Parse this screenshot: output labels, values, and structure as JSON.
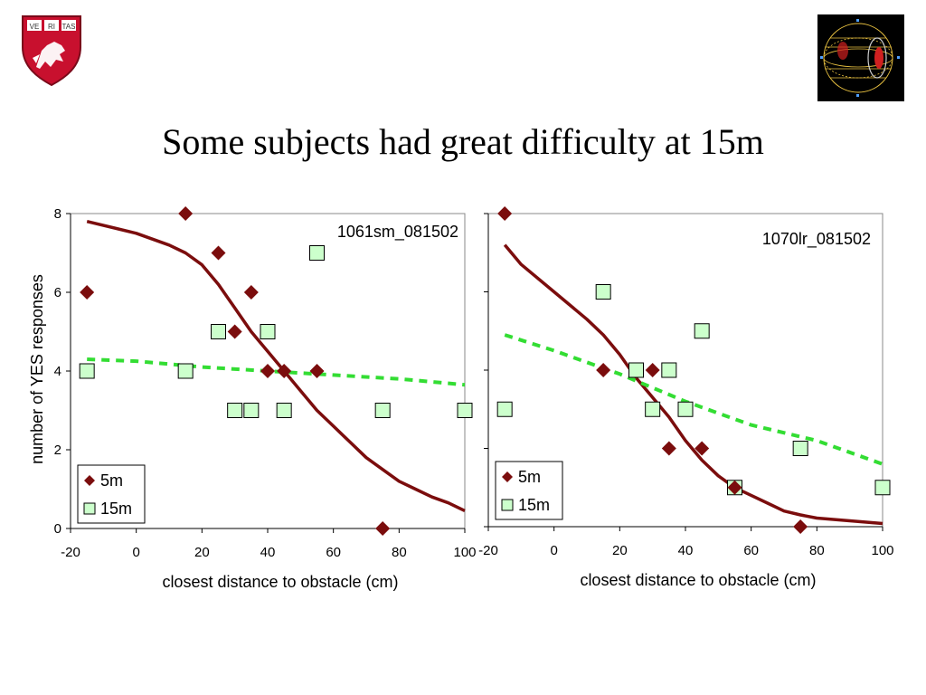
{
  "slide": {
    "title": "Some subjects had great difficulty at 15m"
  },
  "logos": {
    "left": {
      "icon": "harvard-shield-icon",
      "text": "VE RI TAS"
    },
    "right": {
      "icon": "wireframe-sphere-icon"
    }
  },
  "colors": {
    "five_m": "#7b0d0d",
    "fifteen_m_fill": "#ccffcc",
    "fifteen_m_line": "#33dd33"
  },
  "chart_data": [
    {
      "type": "scatter",
      "annotation": "1061sm_081502",
      "xlabel": "closest distance to obstacle (cm)",
      "ylabel": "number of YES responses",
      "xlim": [
        -20,
        100
      ],
      "ylim": [
        0,
        8
      ],
      "xticks": [
        "-20",
        "0",
        "20",
        "40",
        "60",
        "80",
        "100"
      ],
      "yticks": [
        "0",
        "2",
        "4",
        "6",
        "8"
      ],
      "legend_position": "bottom-left",
      "series": [
        {
          "name": "5m",
          "marker": "diamond",
          "points": [
            [
              -15,
              6
            ],
            [
              15,
              8
            ],
            [
              25,
              7
            ],
            [
              30,
              5
            ],
            [
              35,
              6
            ],
            [
              40,
              4
            ],
            [
              45,
              4
            ],
            [
              55,
              4
            ],
            [
              75,
              0
            ]
          ],
          "fit": [
            [
              -15,
              7.8
            ],
            [
              0,
              7.5
            ],
            [
              10,
              7.2
            ],
            [
              15,
              7.0
            ],
            [
              20,
              6.7
            ],
            [
              25,
              6.2
            ],
            [
              30,
              5.6
            ],
            [
              35,
              5.0
            ],
            [
              40,
              4.5
            ],
            [
              45,
              4.0
            ],
            [
              50,
              3.5
            ],
            [
              55,
              3.0
            ],
            [
              60,
              2.6
            ],
            [
              65,
              2.2
            ],
            [
              70,
              1.8
            ],
            [
              75,
              1.5
            ],
            [
              80,
              1.2
            ],
            [
              85,
              1.0
            ],
            [
              90,
              0.8
            ],
            [
              95,
              0.65
            ],
            [
              100,
              0.45
            ]
          ]
        },
        {
          "name": "15m",
          "marker": "square",
          "points": [
            [
              -15,
              4
            ],
            [
              15,
              4
            ],
            [
              25,
              5
            ],
            [
              30,
              3
            ],
            [
              35,
              3
            ],
            [
              40,
              5
            ],
            [
              45,
              3
            ],
            [
              55,
              7
            ],
            [
              75,
              3
            ],
            [
              100,
              3
            ]
          ],
          "fit": [
            [
              -15,
              4.3
            ],
            [
              0,
              4.25
            ],
            [
              20,
              4.1
            ],
            [
              40,
              4.0
            ],
            [
              60,
              3.9
            ],
            [
              80,
              3.8
            ],
            [
              100,
              3.65
            ]
          ]
        }
      ]
    },
    {
      "type": "scatter",
      "annotation": "1070lr_081502",
      "xlabel": "closest distance to obstacle (cm)",
      "ylabel": "",
      "xlim": [
        -20,
        100
      ],
      "ylim": [
        0,
        8
      ],
      "xticks": [
        "-20",
        "0",
        "20",
        "40",
        "60",
        "80",
        "100"
      ],
      "yticks": [],
      "legend_position": "bottom-left",
      "series": [
        {
          "name": "5m",
          "marker": "diamond",
          "points": [
            [
              -15,
              8
            ],
            [
              15,
              4
            ],
            [
              30,
              4
            ],
            [
              35,
              2
            ],
            [
              45,
              2
            ],
            [
              55,
              1
            ],
            [
              75,
              0
            ]
          ],
          "fit": [
            [
              -15,
              7.2
            ],
            [
              -10,
              6.7
            ],
            [
              0,
              6.0
            ],
            [
              10,
              5.3
            ],
            [
              15,
              4.9
            ],
            [
              20,
              4.4
            ],
            [
              25,
              3.8
            ],
            [
              30,
              3.3
            ],
            [
              35,
              2.8
            ],
            [
              40,
              2.2
            ],
            [
              45,
              1.7
            ],
            [
              50,
              1.3
            ],
            [
              55,
              1.0
            ],
            [
              60,
              0.8
            ],
            [
              65,
              0.6
            ],
            [
              70,
              0.4
            ],
            [
              75,
              0.3
            ],
            [
              80,
              0.22
            ],
            [
              90,
              0.15
            ],
            [
              100,
              0.08
            ]
          ]
        },
        {
          "name": "15m",
          "marker": "square",
          "points": [
            [
              -15,
              3
            ],
            [
              15,
              6
            ],
            [
              25,
              4
            ],
            [
              30,
              3
            ],
            [
              35,
              4
            ],
            [
              40,
              3
            ],
            [
              45,
              5
            ],
            [
              55,
              1
            ],
            [
              75,
              2
            ],
            [
              100,
              1
            ]
          ],
          "fit": [
            [
              -15,
              4.9
            ],
            [
              0,
              4.5
            ],
            [
              20,
              3.9
            ],
            [
              40,
              3.2
            ],
            [
              60,
              2.6
            ],
            [
              80,
              2.2
            ],
            [
              100,
              1.6
            ]
          ]
        }
      ]
    }
  ]
}
